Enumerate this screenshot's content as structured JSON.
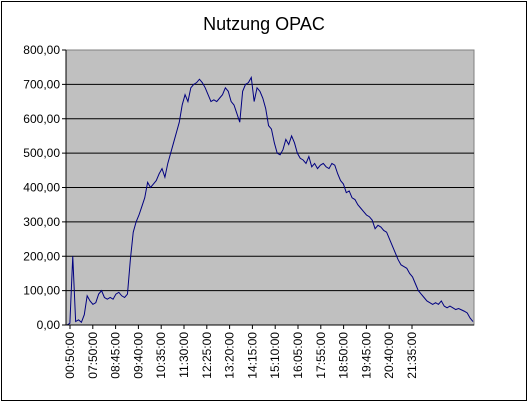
{
  "chart_data": {
    "type": "line",
    "title": "Nutzung OPAC",
    "xlabel": "",
    "ylabel": "",
    "ylim": [
      0,
      800
    ],
    "y_ticks": [
      "0,00",
      "100,00",
      "200,00",
      "300,00",
      "400,00",
      "500,00",
      "600,00",
      "700,00",
      "800,00"
    ],
    "x_tick_labels": [
      "00:50:00",
      "07:50:00",
      "08:45:00",
      "09:40:00",
      "10:35:00",
      "11:30:00",
      "12:25:00",
      "13:20:00",
      "14:15:00",
      "15:10:00",
      "16:05:00",
      "17:55:00",
      "18:50:00",
      "19:45:00",
      "20:40:00",
      "21:35:00"
    ],
    "grid": "horizontal",
    "legend": "none",
    "plot_background": "#c0c0c0",
    "line_color": "#000080",
    "series": [
      {
        "values": [
          0,
          5,
          200,
          10,
          15,
          8,
          30,
          85,
          70,
          60,
          65,
          90,
          100,
          80,
          75,
          80,
          75,
          90,
          95,
          85,
          80,
          90,
          190,
          270,
          300,
          320,
          345,
          370,
          415,
          400,
          410,
          420,
          440,
          455,
          430,
          470,
          500,
          530,
          560,
          590,
          640,
          670,
          650,
          690,
          700,
          705,
          715,
          705,
          690,
          670,
          650,
          655,
          650,
          660,
          670,
          690,
          680,
          650,
          640,
          615,
          590,
          680,
          700,
          705,
          720,
          650,
          690,
          680,
          660,
          630,
          580,
          570,
          530,
          500,
          495,
          510,
          540,
          525,
          550,
          530,
          500,
          485,
          480,
          470,
          490,
          460,
          470,
          455,
          465,
          470,
          460,
          455,
          470,
          465,
          440,
          420,
          410,
          385,
          390,
          370,
          365,
          350,
          340,
          330,
          320,
          315,
          305,
          280,
          290,
          285,
          275,
          270,
          250,
          230,
          210,
          190,
          175,
          170,
          165,
          150,
          140,
          120,
          100,
          90,
          80,
          70,
          65,
          60,
          65,
          60,
          70,
          55,
          50,
          55,
          50,
          45,
          48,
          44,
          40,
          35,
          20,
          10
        ]
      }
    ]
  }
}
